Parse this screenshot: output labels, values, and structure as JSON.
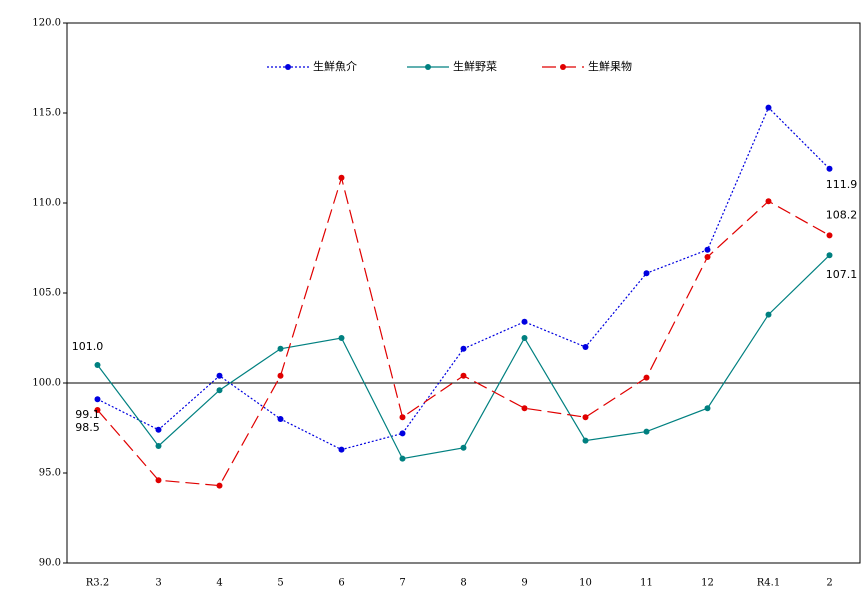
{
  "chart_data": {
    "type": "line",
    "categories": [
      "R3.2",
      "3",
      "4",
      "5",
      "6",
      "7",
      "8",
      "9",
      "10",
      "11",
      "12",
      "R4.1",
      "2"
    ],
    "series": [
      {
        "name": "生鮮魚介",
        "color": "#0000e0",
        "dash": "dotted",
        "values": [
          99.1,
          97.4,
          100.4,
          98.0,
          96.3,
          97.2,
          101.9,
          103.4,
          102.0,
          106.1,
          107.4,
          115.3,
          111.9
        ],
        "value_labels": [
          "99.1",
          null,
          null,
          null,
          null,
          null,
          null,
          null,
          null,
          null,
          null,
          null,
          "111.9"
        ]
      },
      {
        "name": "生鮮野菜",
        "color": "#008080",
        "dash": "solid",
        "values": [
          101.0,
          96.5,
          99.6,
          101.9,
          102.5,
          95.8,
          96.4,
          102.5,
          96.8,
          97.3,
          98.6,
          103.8,
          107.1
        ],
        "value_labels": [
          "101.0",
          null,
          null,
          null,
          null,
          null,
          null,
          null,
          null,
          null,
          null,
          null,
          "107.1"
        ]
      },
      {
        "name": "生鮮果物",
        "color": "#e00000",
        "dash": "dashed",
        "values": [
          98.5,
          94.6,
          94.3,
          100.4,
          111.4,
          98.1,
          100.4,
          98.6,
          98.1,
          100.3,
          107.0,
          110.1,
          108.2
        ],
        "value_labels": [
          "98.5",
          null,
          null,
          null,
          null,
          null,
          null,
          null,
          null,
          null,
          null,
          null,
          "108.2"
        ]
      }
    ],
    "ylim": [
      90,
      120
    ],
    "yticks": [
      {
        "value": 90,
        "label": "90.0"
      },
      {
        "value": 95,
        "label": "95.0"
      },
      {
        "value": 100,
        "label": "100.0"
      },
      {
        "value": 105,
        "label": "105.0"
      },
      {
        "value": 110,
        "label": "110.0"
      },
      {
        "value": 115,
        "label": "115.0"
      },
      {
        "value": 120,
        "label": "120.0"
      }
    ],
    "reference_line": 100,
    "legend": "top"
  }
}
